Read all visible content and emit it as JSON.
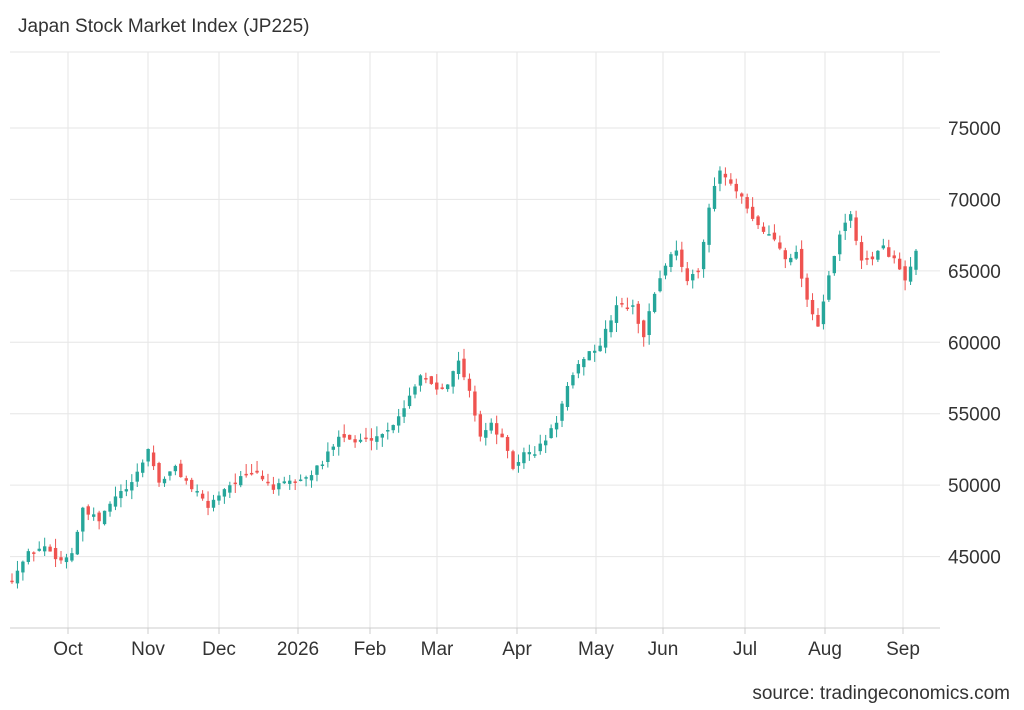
{
  "title": "Japan Stock Market Index (JP225)",
  "source": "source: tradingeconomics.com",
  "chart_data": {
    "type": "candlestick",
    "title": "Japan Stock Market Index (JP225)",
    "ylim": [
      40000,
      80000
    ],
    "yticks": [
      45000,
      50000,
      55000,
      60000,
      65000,
      70000,
      75000
    ],
    "xticks": [
      "Oct",
      "Nov",
      "Dec",
      "2026",
      "Feb",
      "Mar",
      "Apr",
      "May",
      "Jun",
      "Jul",
      "Aug",
      "Sep"
    ],
    "grid": true,
    "colors": {
      "up": "#26a69a",
      "down": "#ef5350",
      "grid": "#e6e6e6",
      "axis": "#cccccc"
    },
    "waypoints": [
      [
        0,
        43500
      ],
      [
        3,
        45200
      ],
      [
        6,
        45700
      ],
      [
        9,
        44700
      ],
      [
        11,
        45300
      ],
      [
        13,
        48200
      ],
      [
        16,
        47500
      ],
      [
        19,
        49200
      ],
      [
        22,
        50000
      ],
      [
        25,
        52500
      ],
      [
        27,
        50200
      ],
      [
        30,
        51200
      ],
      [
        33,
        49800
      ],
      [
        36,
        48500
      ],
      [
        39,
        49800
      ],
      [
        42,
        50500
      ],
      [
        45,
        50800
      ],
      [
        48,
        49800
      ],
      [
        51,
        50200
      ],
      [
        54,
        50500
      ],
      [
        57,
        51500
      ],
      [
        60,
        53600
      ],
      [
        63,
        53000
      ],
      [
        66,
        53300
      ],
      [
        69,
        53800
      ],
      [
        72,
        55500
      ],
      [
        75,
        57800
      ],
      [
        78,
        56800
      ],
      [
        80,
        57200
      ],
      [
        82,
        58600
      ],
      [
        84,
        56500
      ],
      [
        86,
        53500
      ],
      [
        88,
        54200
      ],
      [
        90,
        53200
      ],
      [
        92,
        51200
      ],
      [
        94,
        52200
      ],
      [
        96,
        52300
      ],
      [
        98,
        53200
      ],
      [
        100,
        54500
      ],
      [
        102,
        56800
      ],
      [
        105,
        59000
      ],
      [
        108,
        59800
      ],
      [
        111,
        62600
      ],
      [
        114,
        62400
      ],
      [
        116,
        60500
      ],
      [
        118,
        63500
      ],
      [
        120,
        65500
      ],
      [
        122,
        66600
      ],
      [
        124,
        64200
      ],
      [
        126,
        65000
      ],
      [
        128,
        69500
      ],
      [
        130,
        72000
      ],
      [
        132,
        71000
      ],
      [
        134,
        70000
      ],
      [
        136,
        68500
      ],
      [
        138,
        67800
      ],
      [
        140,
        67200
      ],
      [
        142,
        66000
      ],
      [
        144,
        66200
      ],
      [
        146,
        63000
      ],
      [
        148,
        61200
      ],
      [
        150,
        64500
      ],
      [
        152,
        67500
      ],
      [
        154,
        69000
      ],
      [
        156,
        65500
      ],
      [
        158,
        66000
      ],
      [
        160,
        66600
      ],
      [
        162,
        65800
      ],
      [
        164,
        64200
      ],
      [
        166,
        66200
      ]
    ]
  }
}
